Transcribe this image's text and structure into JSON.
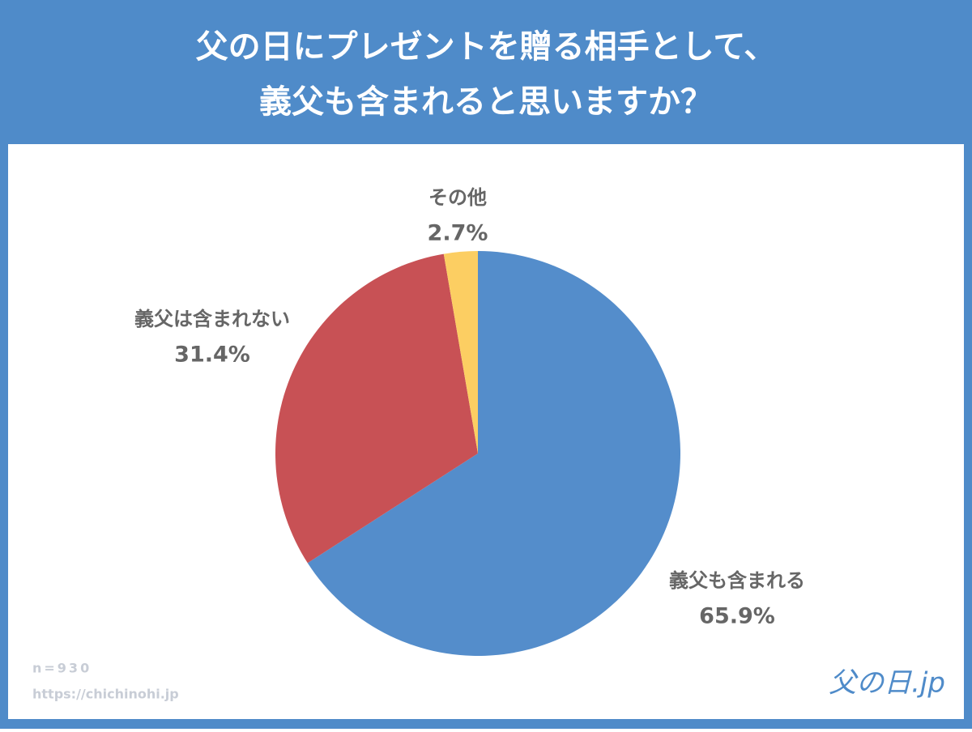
{
  "chart_data": {
    "type": "pie",
    "title_lines": [
      "父の日にプレゼントを贈る相手として、",
      "義父も含まれると思いますか？"
    ],
    "categories": [
      "義父も含まれる",
      "義父は含まれない",
      "その他"
    ],
    "values": [
      65.9,
      31.4,
      2.7
    ],
    "value_labels": [
      "65.9%",
      "31.4%",
      "2.7%"
    ],
    "colors": [
      "#548dcb",
      "#c85155",
      "#fcce62"
    ],
    "notes": [
      "n=930",
      "https://chichinohi.jp"
    ],
    "logo": "父の日.jp"
  }
}
